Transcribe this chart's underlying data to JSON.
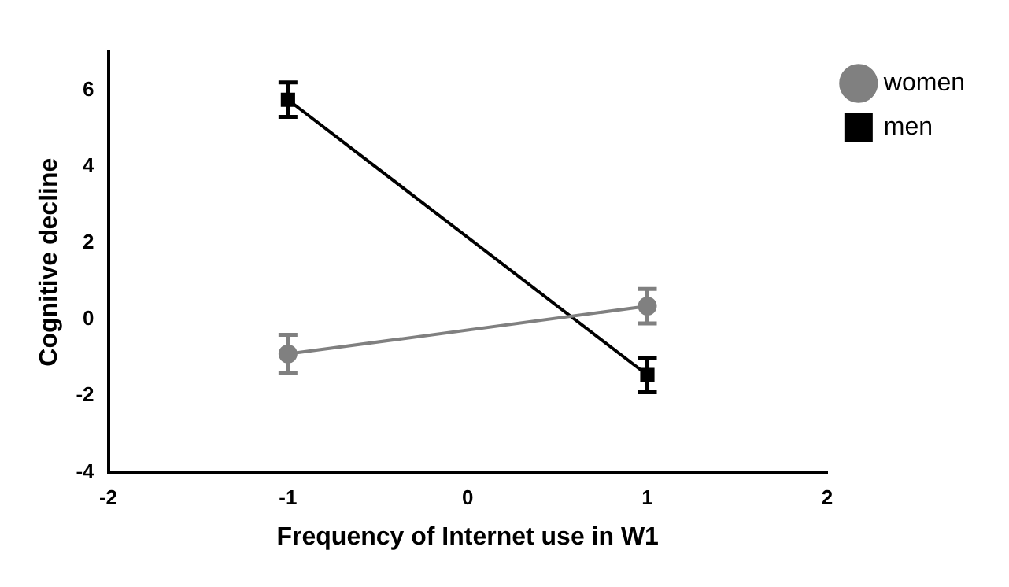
{
  "chart_data": {
    "type": "line",
    "xlabel": "Frequency of Internet use in W1",
    "ylabel": "Cognitive decline",
    "x": [
      -1,
      1
    ],
    "xlim": [
      -2,
      2
    ],
    "xticks": [
      -2,
      -1,
      0,
      1,
      2
    ],
    "ylim": [
      -4,
      7
    ],
    "yticks": [
      -4,
      -2,
      0,
      2,
      4,
      6
    ],
    "series": [
      {
        "name": "women",
        "color": "#808080",
        "values": [
          -0.9,
          0.35
        ],
        "errors": [
          0.5,
          0.45
        ],
        "marker": "circle"
      },
      {
        "name": "men",
        "color": "#000000",
        "values": [
          5.75,
          -1.45
        ],
        "errors": [
          0.45,
          0.45
        ],
        "marker": "square"
      }
    ],
    "grid": false,
    "legend": "top right",
    "line_style": "solid"
  }
}
